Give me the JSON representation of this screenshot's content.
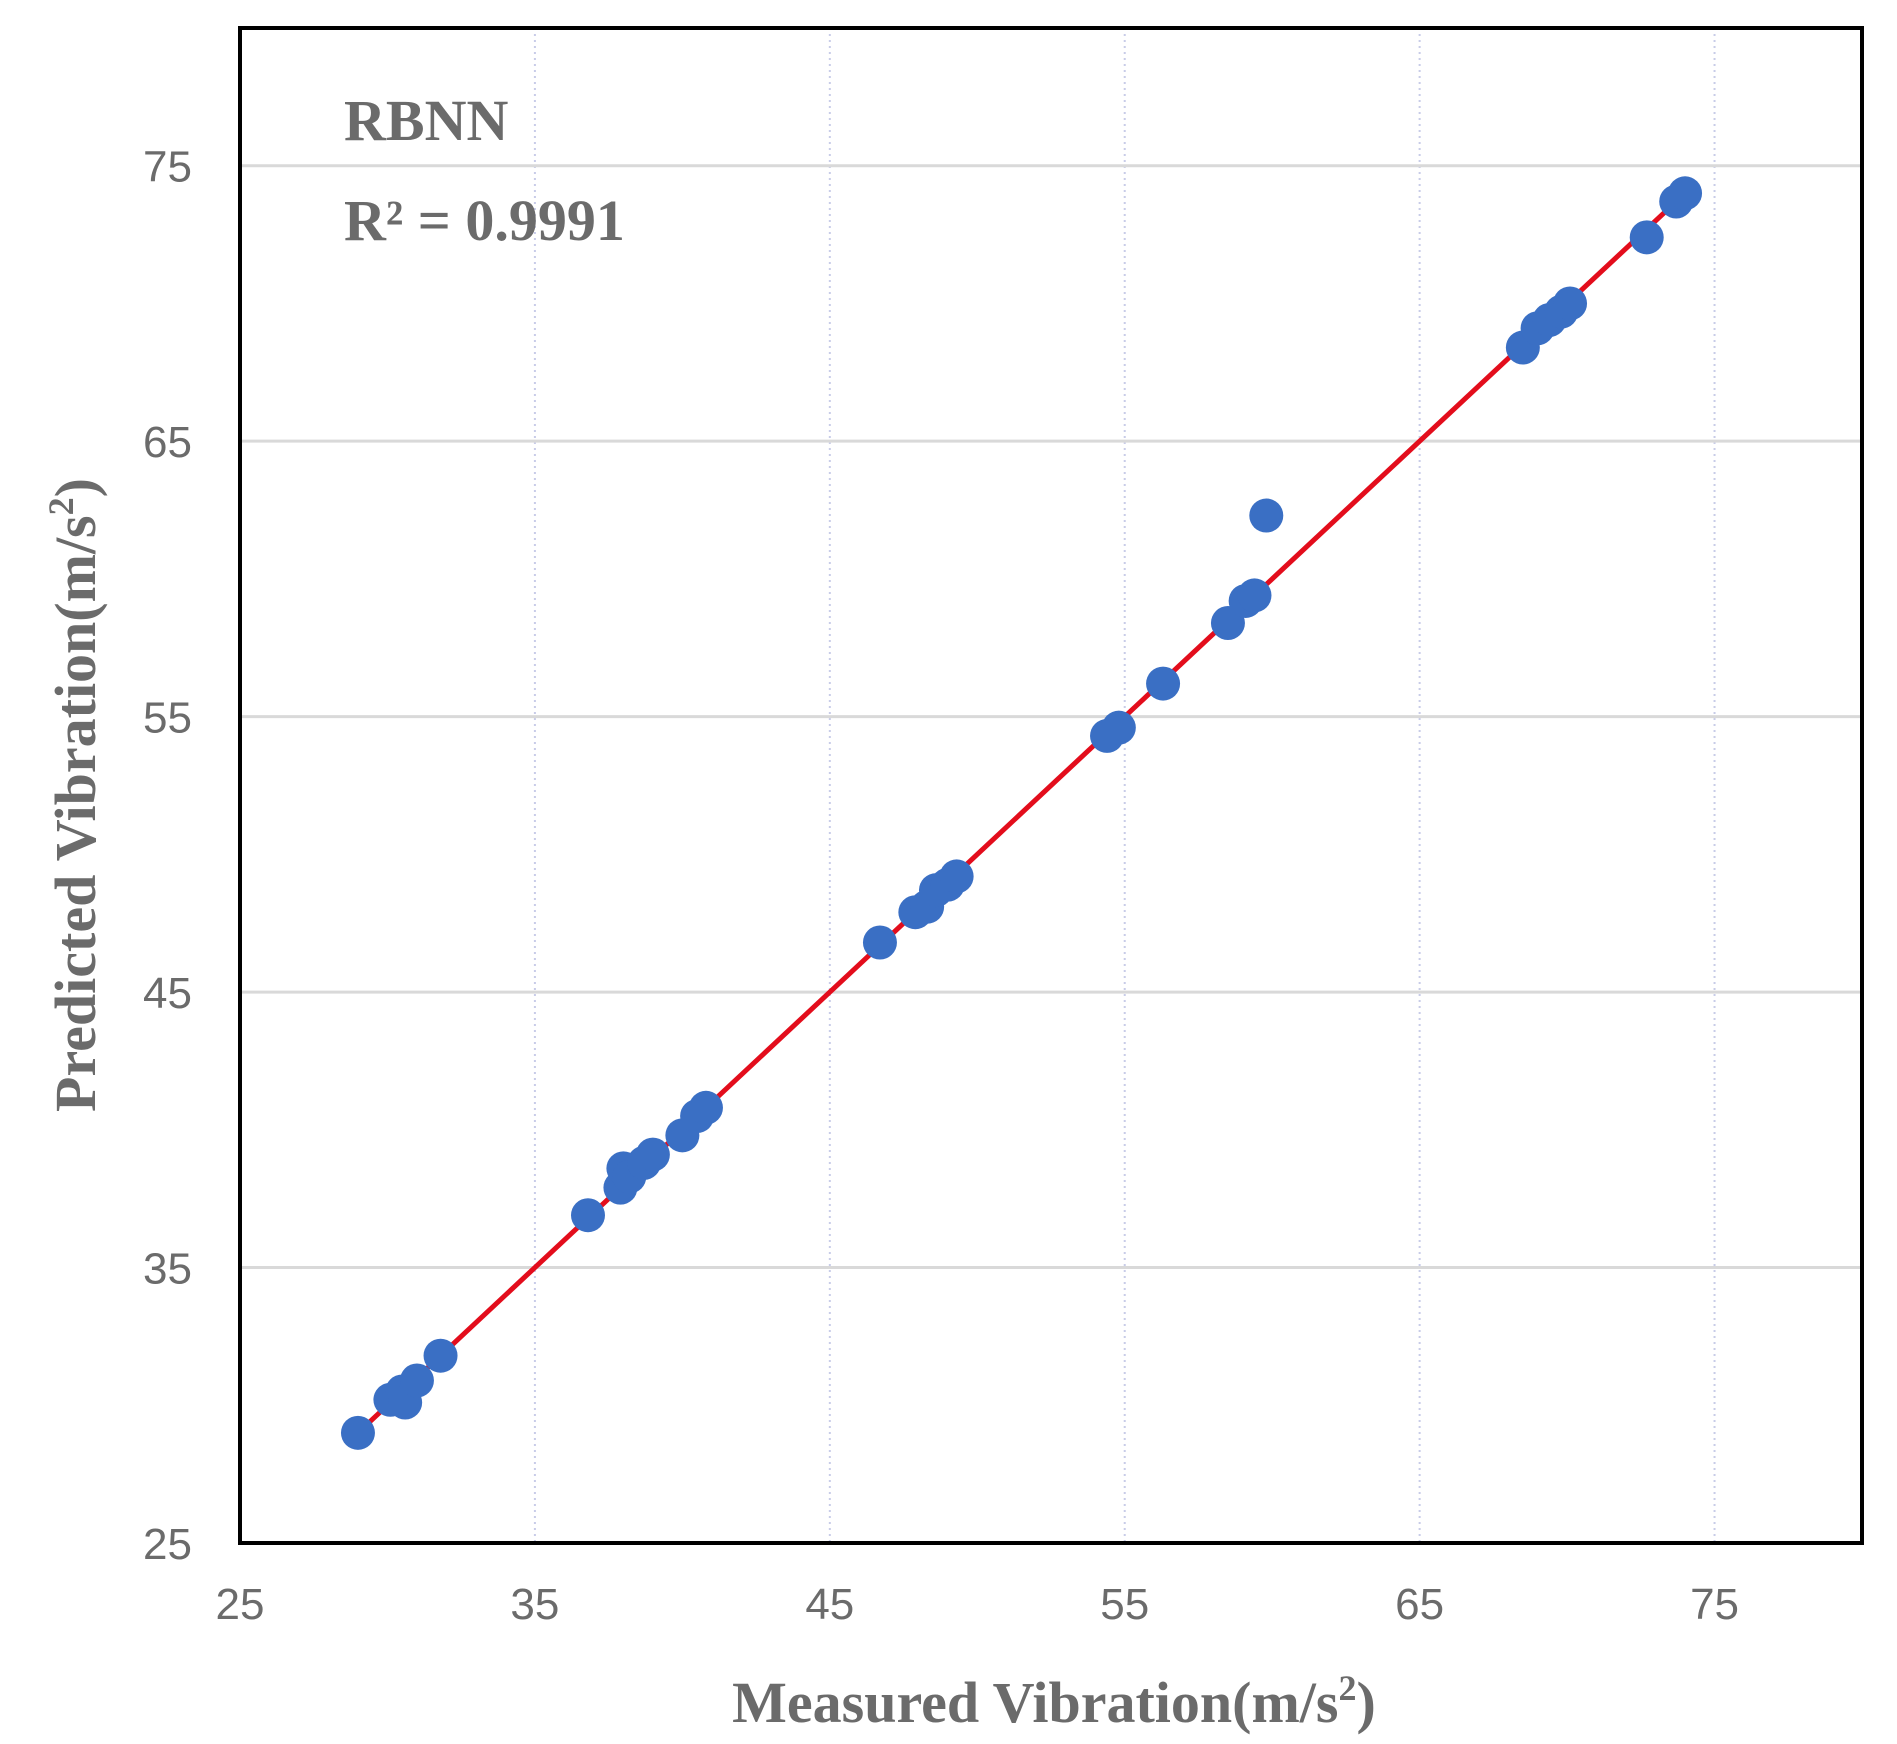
{
  "chart_data": {
    "type": "scatter",
    "title": "",
    "xlabel": "Measured Vibration(m/s",
    "xlabel_sup": "2",
    "xlabel_close": ")",
    "ylabel": "Predicted Vibration(m/s",
    "ylabel_sup": "2",
    "ylabel_close": ")",
    "xlim": [
      25,
      80
    ],
    "ylim": [
      25,
      80
    ],
    "xticks": [
      25,
      35,
      45,
      55,
      65,
      75
    ],
    "yticks": [
      25,
      35,
      45,
      55,
      65,
      75
    ],
    "grid": true,
    "model_label": "RBNN",
    "r2_label": "R² = 0.9991",
    "colors": {
      "points": "#3a6fc4",
      "fit": "#e30d1c",
      "frame": "#000000",
      "grid": "#d9d9d9",
      "minor_grid": "#c8cce8"
    },
    "points": [
      {
        "x": 29.0,
        "y": 29.0
      },
      {
        "x": 30.1,
        "y": 30.2
      },
      {
        "x": 30.5,
        "y": 30.5
      },
      {
        "x": 30.6,
        "y": 30.1
      },
      {
        "x": 31.0,
        "y": 30.9
      },
      {
        "x": 31.8,
        "y": 31.8
      },
      {
        "x": 36.8,
        "y": 36.9
      },
      {
        "x": 37.9,
        "y": 37.9
      },
      {
        "x": 38.0,
        "y": 38.6
      },
      {
        "x": 38.2,
        "y": 38.3
      },
      {
        "x": 38.7,
        "y": 38.8
      },
      {
        "x": 39.0,
        "y": 39.1
      },
      {
        "x": 40.0,
        "y": 39.8
      },
      {
        "x": 40.5,
        "y": 40.5
      },
      {
        "x": 40.8,
        "y": 40.8
      },
      {
        "x": 46.7,
        "y": 46.8
      },
      {
        "x": 47.9,
        "y": 47.9
      },
      {
        "x": 48.3,
        "y": 48.1
      },
      {
        "x": 48.6,
        "y": 48.7
      },
      {
        "x": 49.0,
        "y": 48.9
      },
      {
        "x": 49.3,
        "y": 49.2
      },
      {
        "x": 54.4,
        "y": 54.3
      },
      {
        "x": 54.8,
        "y": 54.6
      },
      {
        "x": 56.3,
        "y": 56.2
      },
      {
        "x": 58.5,
        "y": 58.4
      },
      {
        "x": 59.1,
        "y": 59.2
      },
      {
        "x": 59.4,
        "y": 59.4
      },
      {
        "x": 59.8,
        "y": 62.3
      },
      {
        "x": 68.5,
        "y": 68.4
      },
      {
        "x": 69.0,
        "y": 69.1
      },
      {
        "x": 69.4,
        "y": 69.4
      },
      {
        "x": 69.8,
        "y": 69.7
      },
      {
        "x": 70.1,
        "y": 70.0
      },
      {
        "x": 72.7,
        "y": 72.4
      },
      {
        "x": 73.7,
        "y": 73.7
      },
      {
        "x": 74.0,
        "y": 74.0
      }
    ],
    "fit_line": {
      "x": [
        29.0,
        74.0
      ],
      "y": [
        29.0,
        74.0
      ]
    }
  }
}
